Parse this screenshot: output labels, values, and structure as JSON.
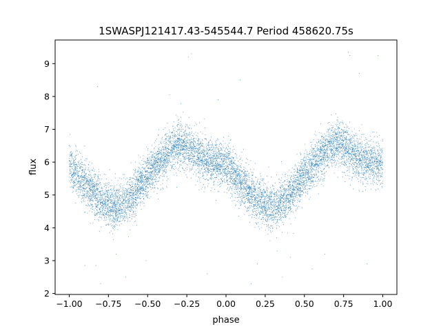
{
  "chart_data": {
    "type": "scatter",
    "title": "1SWASPJ121417.43-545544.7 Period 458620.75s",
    "xlabel": "phase",
    "ylabel": "flux",
    "xlim": [
      -1.09,
      1.09
    ],
    "ylim": [
      1.97,
      9.72
    ],
    "xticks": [
      -1.0,
      -0.75,
      -0.5,
      -0.25,
      0.0,
      0.25,
      0.5,
      0.75,
      1.0
    ],
    "xtick_labels": [
      "−1.00",
      "−0.75",
      "−0.50",
      "−0.25",
      "0.00",
      "0.25",
      "0.50",
      "0.75",
      "1.00"
    ],
    "yticks": [
      2,
      3,
      4,
      5,
      6,
      7,
      8,
      9
    ],
    "ytick_labels": [
      "2",
      "3",
      "4",
      "5",
      "6",
      "7",
      "8",
      "9"
    ],
    "grid": false,
    "point_color": "#1f77b4",
    "phase_range": [
      -1.0,
      1.0
    ],
    "profile": {
      "phase": [
        0.0,
        0.05,
        0.1,
        0.15,
        0.2,
        0.25,
        0.3,
        0.35,
        0.4,
        0.45,
        0.5,
        0.55,
        0.6,
        0.65,
        0.7,
        0.75,
        0.8,
        0.85,
        0.9,
        0.95,
        1.0
      ],
      "flux": [
        5.95,
        5.6,
        5.35,
        5.1,
        4.85,
        4.7,
        4.6,
        4.75,
        4.95,
        5.3,
        5.6,
        5.85,
        6.1,
        6.4,
        6.55,
        6.5,
        6.3,
        6.1,
        6.0,
        6.0,
        5.95
      ],
      "scatter_sd": 0.33
    },
    "outliers": [
      {
        "x": -0.22,
        "y": 9.3
      },
      {
        "x": -0.24,
        "y": 9.2
      },
      {
        "x": 0.78,
        "y": 9.35
      },
      {
        "x": 0.79,
        "y": 9.25
      },
      {
        "x": 0.97,
        "y": 9.25
      },
      {
        "x": -0.82,
        "y": 8.3
      },
      {
        "x": 0.85,
        "y": 8.7
      },
      {
        "x": -0.05,
        "y": 7.9
      },
      {
        "x": -0.36,
        "y": 8.05
      },
      {
        "x": 0.09,
        "y": 8.5
      },
      {
        "x": -0.9,
        "y": 2.85
      },
      {
        "x": -0.83,
        "y": 2.85
      },
      {
        "x": -0.64,
        "y": 2.5
      },
      {
        "x": 0.36,
        "y": 2.5
      },
      {
        "x": 0.55,
        "y": 2.75
      },
      {
        "x": 0.2,
        "y": 2.9
      },
      {
        "x": -0.8,
        "y": 2.3
      },
      {
        "x": 0.16,
        "y": 2.3
      },
      {
        "x": -0.51,
        "y": 3.0
      },
      {
        "x": 0.63,
        "y": 3.2
      },
      {
        "x": 0.9,
        "y": 2.9
      },
      {
        "x": -0.12,
        "y": 2.6
      },
      {
        "x": -0.7,
        "y": 3.2
      },
      {
        "x": 0.41,
        "y": 3.1
      }
    ],
    "n_points": 9000
  }
}
